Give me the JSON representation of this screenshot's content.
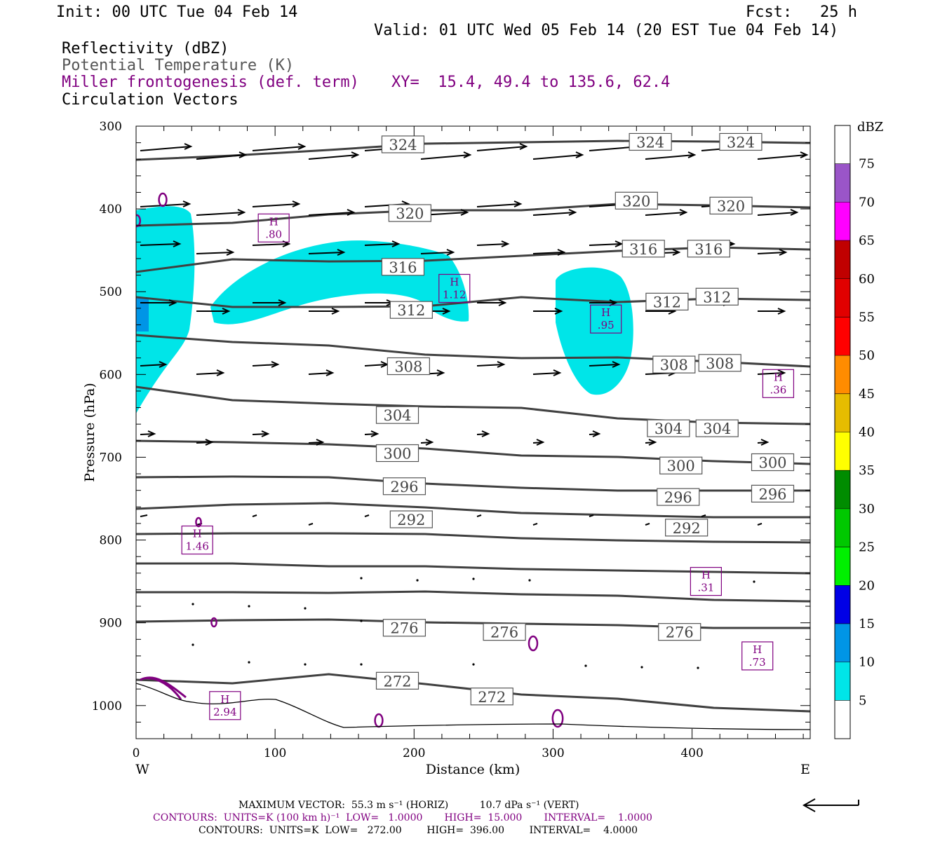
{
  "header": {
    "init": "Init: 00 UTC Tue 04 Feb 14",
    "fcst": "Fcst:   25 h",
    "valid": "Valid: 01 UTC Wed 05 Feb 14 (20 EST Tue 04 Feb 14)",
    "field1": "Reflectivity (dBZ)",
    "field2": "Potential Temperature (K)",
    "field3": "Miller frontogenesis (def. term)",
    "xy": "XY=  15.4, 49.4 to 135.6, 62.4",
    "field4": "Circulation Vectors"
  },
  "colors": {
    "reflectivity_fill": "#00e5e8",
    "theta_contour": "#404040",
    "frontogenesis": "#800080",
    "vector": "#000000"
  },
  "chart_data": {
    "type": "cross-section",
    "xlabel": "Distance (km)",
    "ylabel": "Pressure (hPa)",
    "xlim": [
      0,
      485
    ],
    "ylim": [
      1040,
      300
    ],
    "x_ticks": [
      0,
      100,
      200,
      300,
      400
    ],
    "y_ticks": [
      300,
      400,
      500,
      600,
      700,
      800,
      900,
      1000
    ],
    "x_end_labels": {
      "left": "W",
      "right": "E"
    },
    "grid": false,
    "theta_labels": [
      {
        "value": "324",
        "x": 192,
        "p": 322
      },
      {
        "value": "324",
        "x": 370,
        "p": 319
      },
      {
        "value": "324",
        "x": 435,
        "p": 319
      },
      {
        "value": "320",
        "x": 197,
        "p": 405
      },
      {
        "value": "320",
        "x": 360,
        "p": 390
      },
      {
        "value": "320",
        "x": 428,
        "p": 396
      },
      {
        "value": "316",
        "x": 192,
        "p": 470
      },
      {
        "value": "316",
        "x": 365,
        "p": 448
      },
      {
        "value": "316",
        "x": 412,
        "p": 448
      },
      {
        "value": "312",
        "x": 198,
        "p": 522
      },
      {
        "value": "312",
        "x": 382,
        "p": 512
      },
      {
        "value": "312",
        "x": 418,
        "p": 506
      },
      {
        "value": "308",
        "x": 196,
        "p": 590
      },
      {
        "value": "308",
        "x": 387,
        "p": 588
      },
      {
        "value": "308",
        "x": 420,
        "p": 586
      },
      {
        "value": "304",
        "x": 188,
        "p": 649
      },
      {
        "value": "304",
        "x": 383,
        "p": 665
      },
      {
        "value": "304",
        "x": 418,
        "p": 665
      },
      {
        "value": "300",
        "x": 188,
        "p": 695
      },
      {
        "value": "300",
        "x": 392,
        "p": 710
      },
      {
        "value": "300",
        "x": 458,
        "p": 706
      },
      {
        "value": "296",
        "x": 193,
        "p": 735
      },
      {
        "value": "296",
        "x": 390,
        "p": 748
      },
      {
        "value": "296",
        "x": 458,
        "p": 744
      },
      {
        "value": "292",
        "x": 198,
        "p": 775
      },
      {
        "value": "292",
        "x": 396,
        "p": 785
      },
      {
        "value": "276",
        "x": 193,
        "p": 906
      },
      {
        "value": "276",
        "x": 265,
        "p": 911
      },
      {
        "value": "276",
        "x": 391,
        "p": 911
      },
      {
        "value": "272",
        "x": 188,
        "p": 970
      },
      {
        "value": "272",
        "x": 256,
        "p": 989
      }
    ],
    "frontogenesis_maxima": [
      {
        "label": "H",
        "value": ".80",
        "x": 99,
        "p": 423
      },
      {
        "label": "H",
        "value": "1.12",
        "x": 229,
        "p": 496
      },
      {
        "label": "H",
        "value": ".95",
        "x": 338,
        "p": 533
      },
      {
        "label": "H",
        "value": ".36",
        "x": 462,
        "p": 611
      },
      {
        "label": "H",
        "value": "1.46",
        "x": 44,
        "p": 800
      },
      {
        "label": "H",
        "value": ".31",
        "x": 410,
        "p": 850
      },
      {
        "label": "H",
        "value": ".73",
        "x": 447,
        "p": 940
      },
      {
        "label": "H",
        "value": "2.94",
        "x": 64,
        "p": 1000
      }
    ],
    "colorbar": {
      "title": "dBZ",
      "levels": [
        "5",
        "10",
        "15",
        "20",
        "25",
        "30",
        "35",
        "40",
        "45",
        "50",
        "55",
        "60",
        "65",
        "70",
        "75"
      ],
      "colors": [
        "#00e5e8",
        "#0095e6",
        "#0000e6",
        "#00f000",
        "#00c800",
        "#008c00",
        "#ffff00",
        "#e6bc00",
        "#ff8c00",
        "#ff0000",
        "#e10000",
        "#c00000",
        "#ff00ff",
        "#9a55c8",
        "#ffffff"
      ]
    }
  },
  "footer": {
    "max_vector": "MAXIMUM VECTOR:  55.3 m s⁻¹ (HORIZ)          10.7 dPa s⁻¹ (VERT)",
    "contours1": "CONTOURS:  UNITS=K (100 km h)⁻¹  LOW=   1.0000       HIGH=  15.000       INTERVAL=    1.0000",
    "contours2": "CONTOURS:  UNITS=K  LOW=   272.00        HIGH=  396.00        INTERVAL=    4.0000"
  }
}
